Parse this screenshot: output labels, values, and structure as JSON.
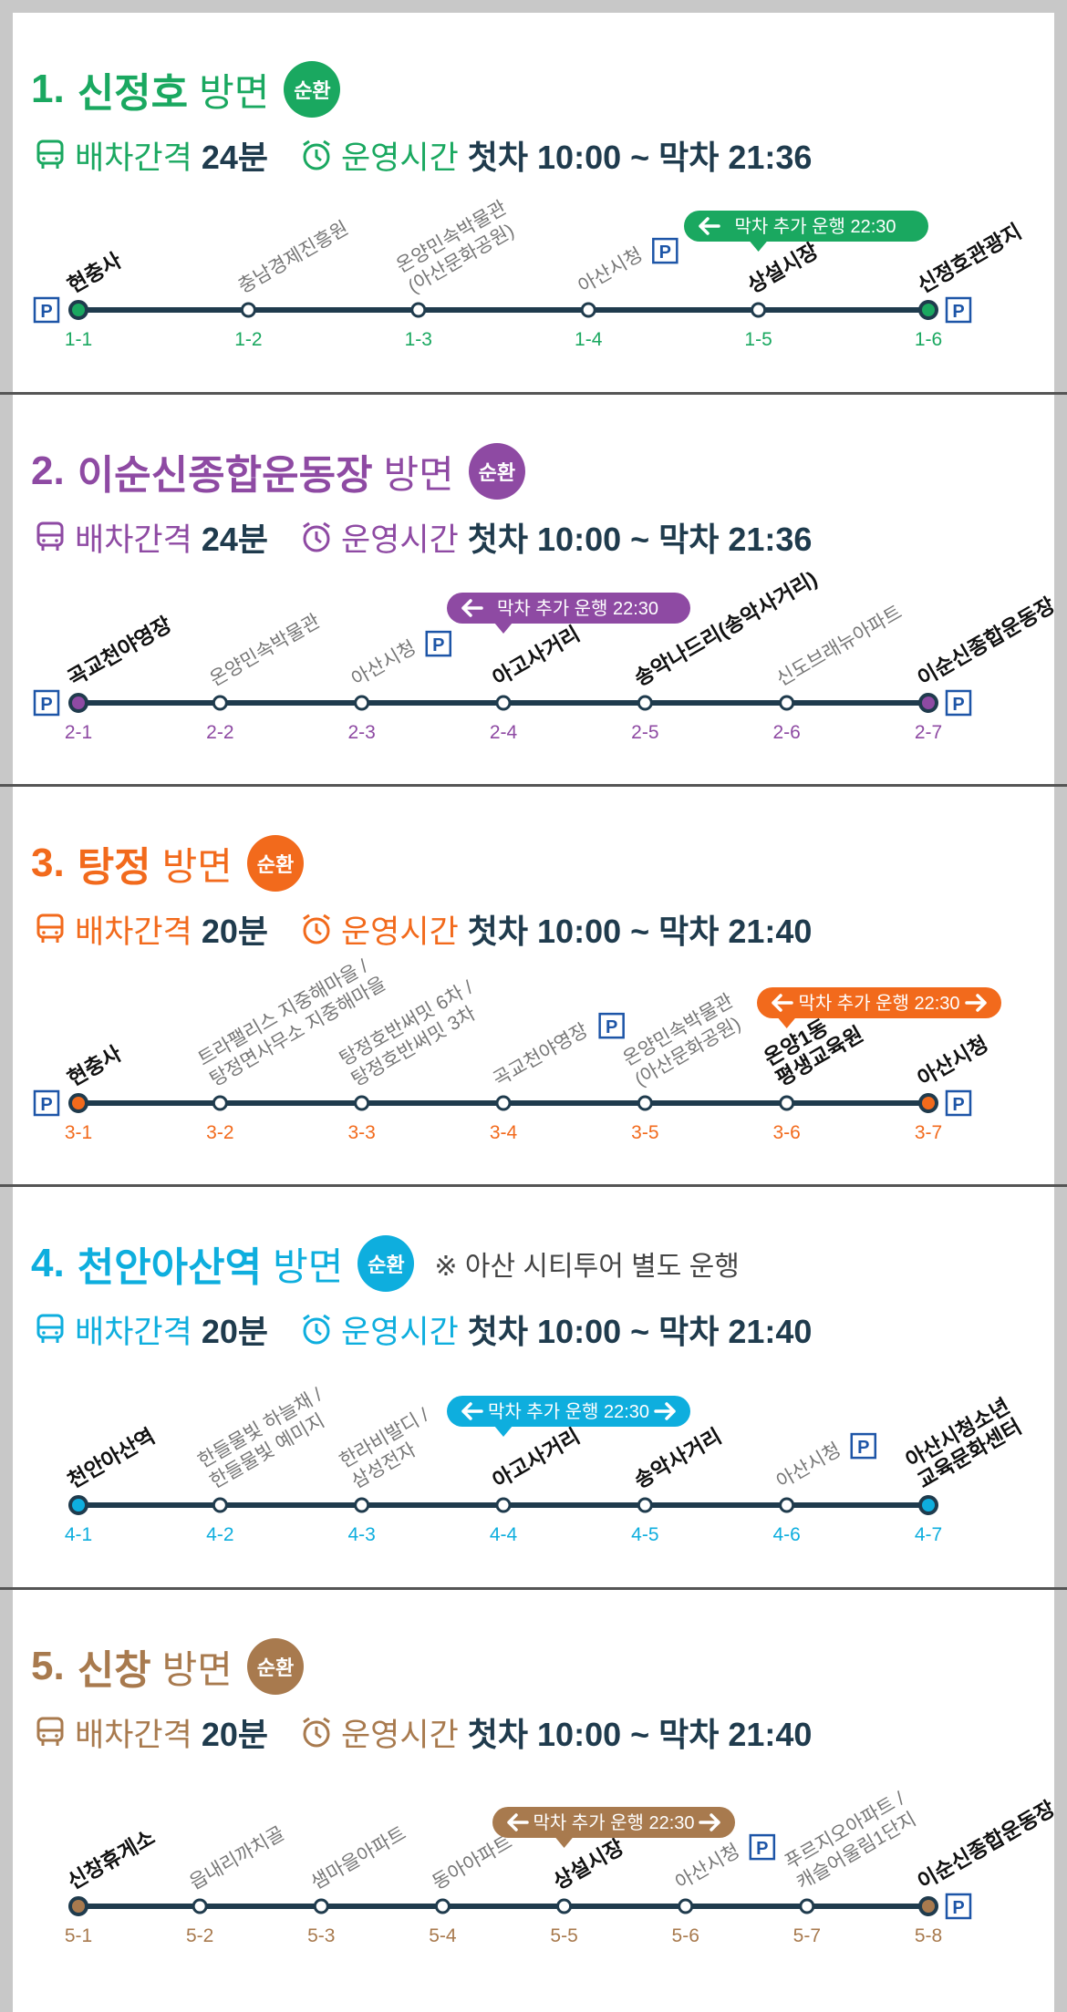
{
  "labels": {
    "interval": "배차간격",
    "operating": "운영시간",
    "circular": "순환"
  },
  "routes": [
    {
      "number": "1.",
      "name": "신정호",
      "direction": "방면",
      "color": "#1aa860",
      "interval": "24분",
      "hours": "첫차 10:00 ~ 막차 21:36",
      "extra": "막차 추가 운행 22:30",
      "extra_dir": "left",
      "extra_stop": 4,
      "stops": [
        {
          "code": "1-1",
          "lines": [
            "현충사"
          ],
          "bold": true,
          "parking": "left"
        },
        {
          "code": "1-2",
          "lines": [
            "충남경제진흥원"
          ]
        },
        {
          "code": "1-3",
          "lines": [
            "온양민속박물관",
            "(아산문화공원)"
          ]
        },
        {
          "code": "1-4",
          "lines": [
            "아산시청"
          ],
          "parking": "label"
        },
        {
          "code": "1-5",
          "lines": [
            "상설시장"
          ],
          "bold": true
        },
        {
          "code": "1-6",
          "lines": [
            "신정호관광지"
          ],
          "bold": true,
          "parking": "right"
        }
      ]
    },
    {
      "number": "2.",
      "name": "이순신종합운동장",
      "direction": "방면",
      "color": "#8e4aa3",
      "interval": "24분",
      "hours": "첫차 10:00 ~ 막차 21:36",
      "extra": "막차 추가 운행 22:30",
      "extra_dir": "left",
      "extra_stop": 3,
      "stops": [
        {
          "code": "2-1",
          "lines": [
            "곡교천야영장"
          ],
          "bold": true,
          "parking": "left"
        },
        {
          "code": "2-2",
          "lines": [
            "온양민속박물관"
          ]
        },
        {
          "code": "2-3",
          "lines": [
            "아산시청"
          ],
          "parking": "label"
        },
        {
          "code": "2-4",
          "lines": [
            "아고사거리"
          ],
          "bold": true
        },
        {
          "code": "2-5",
          "lines": [
            "송악나드리(송악사거리)"
          ],
          "bold": true
        },
        {
          "code": "2-6",
          "lines": [
            "신도브래뉴아파트"
          ]
        },
        {
          "code": "2-7",
          "lines": [
            "이순신종합운동장"
          ],
          "bold": true,
          "parking": "right"
        }
      ]
    },
    {
      "number": "3.",
      "name": "탕정",
      "direction": "방면",
      "color": "#f26a1c",
      "interval": "20분",
      "hours": "첫차 10:00 ~ 막차 21:40",
      "extra": "막차 추가 운행 22:30",
      "extra_dir": "both",
      "extra_stop": 5,
      "stops": [
        {
          "code": "3-1",
          "lines": [
            "현충사"
          ],
          "bold": true,
          "parking": "left"
        },
        {
          "code": "3-2",
          "lines": [
            "트라팰리스 지중해마을 /",
            "탕정면사무소 지중해마을"
          ]
        },
        {
          "code": "3-3",
          "lines": [
            "탕정호반써밋 6차 /",
            "탕정호반써밋 3차"
          ]
        },
        {
          "code": "3-4",
          "lines": [
            "곡교천야영장"
          ],
          "parking": "label"
        },
        {
          "code": "3-5",
          "lines": [
            "온양민속박물관",
            "(아산문화공원)"
          ]
        },
        {
          "code": "3-6",
          "lines": [
            "온양1동",
            "평생교육원"
          ],
          "bold": true
        },
        {
          "code": "3-7",
          "lines": [
            "아산시청"
          ],
          "bold": true,
          "parking": "right"
        }
      ]
    },
    {
      "number": "4.",
      "name": "천안아산역",
      "direction": "방면",
      "color": "#0eaede",
      "interval": "20분",
      "hours": "첫차 10:00 ~ 막차 21:40",
      "note": "※ 아산 시티투어 별도 운행",
      "extra": "막차 추가 운행 22:30",
      "extra_dir": "both",
      "extra_stop": 3,
      "stops": [
        {
          "code": "4-1",
          "lines": [
            "천안아산역"
          ],
          "bold": true
        },
        {
          "code": "4-2",
          "lines": [
            "한들물빛 하늘채 /",
            "한들물빛 예미지"
          ]
        },
        {
          "code": "4-3",
          "lines": [
            "한라비발디 /",
            "삼성전자"
          ]
        },
        {
          "code": "4-4",
          "lines": [
            "아고사거리"
          ],
          "bold": true
        },
        {
          "code": "4-5",
          "lines": [
            "송악사거리"
          ],
          "bold": true
        },
        {
          "code": "4-6",
          "lines": [
            "아산시청"
          ],
          "parking": "label"
        },
        {
          "code": "4-7",
          "lines": [
            "아산시청소년",
            "교육문화센터"
          ],
          "bold": true
        }
      ]
    },
    {
      "number": "5.",
      "name": "신창",
      "direction": "방면",
      "color": "#a87a4e",
      "interval": "20분",
      "hours": "첫차 10:00 ~ 막차 21:40",
      "extra": "막차 추가 운행 22:30",
      "extra_dir": "both",
      "extra_stop": 4,
      "stops": [
        {
          "code": "5-1",
          "lines": [
            "신창휴게소"
          ],
          "bold": true
        },
        {
          "code": "5-2",
          "lines": [
            "읍내리까치골"
          ]
        },
        {
          "code": "5-3",
          "lines": [
            "샘마을아파트"
          ]
        },
        {
          "code": "5-4",
          "lines": [
            "동아아파트"
          ]
        },
        {
          "code": "5-5",
          "lines": [
            "상설시장"
          ],
          "bold": true
        },
        {
          "code": "5-6",
          "lines": [
            "아산시청"
          ],
          "parking": "label"
        },
        {
          "code": "5-7",
          "lines": [
            "푸르지오아파트 /",
            "캐슬어울림1단지"
          ]
        },
        {
          "code": "5-8",
          "lines": [
            "이순신종합운동장"
          ],
          "bold": true,
          "parking": "right"
        }
      ]
    }
  ]
}
